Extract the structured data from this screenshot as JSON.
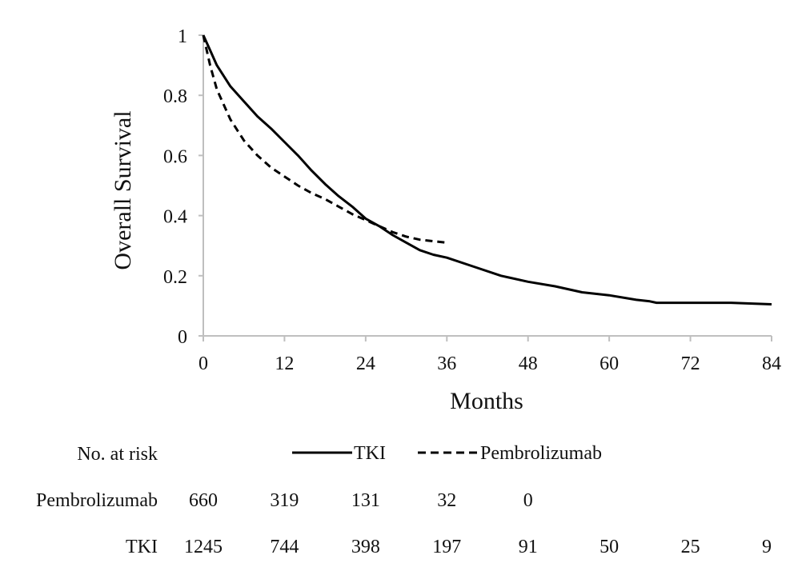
{
  "chart_data": {
    "type": "line",
    "ylabel": "Overall Survival",
    "xlabel": "Months",
    "xlim": [
      0,
      84
    ],
    "ylim": [
      0,
      1
    ],
    "xticks": [
      "0",
      "12",
      "24",
      "36",
      "48",
      "60",
      "72",
      "84"
    ],
    "yticks": [
      "0",
      "0.2",
      "0.4",
      "0.6",
      "0.8",
      "1"
    ],
    "legend": {
      "placement": "bottom-center",
      "entries": [
        "TKI",
        "Pembrolizumab"
      ]
    },
    "series": [
      {
        "name": "TKI",
        "style": "solid",
        "x": [
          0,
          1,
          2,
          4,
          6,
          8,
          10,
          12,
          14,
          16,
          18,
          20,
          22,
          24,
          26,
          28,
          30,
          32,
          34,
          36,
          40,
          44,
          48,
          52,
          56,
          60,
          64,
          66,
          67,
          68,
          72,
          78,
          84
        ],
        "y": [
          1.0,
          0.95,
          0.9,
          0.83,
          0.78,
          0.73,
          0.69,
          0.645,
          0.6,
          0.55,
          0.505,
          0.465,
          0.43,
          0.39,
          0.365,
          0.335,
          0.31,
          0.285,
          0.27,
          0.26,
          0.23,
          0.2,
          0.18,
          0.165,
          0.145,
          0.135,
          0.12,
          0.115,
          0.11,
          0.11,
          0.11,
          0.11,
          0.105
        ]
      },
      {
        "name": "Pembrolizumab",
        "style": "dashed",
        "x": [
          0,
          1,
          2,
          4,
          6,
          8,
          10,
          12,
          14,
          16,
          18,
          20,
          22,
          24,
          26,
          28,
          30,
          32,
          34,
          36
        ],
        "y": [
          1.0,
          0.9,
          0.82,
          0.72,
          0.65,
          0.6,
          0.56,
          0.53,
          0.5,
          0.475,
          0.455,
          0.43,
          0.405,
          0.385,
          0.365,
          0.345,
          0.33,
          0.32,
          0.315,
          0.31
        ]
      }
    ]
  },
  "risk_table": {
    "header": "No. at risk",
    "rows": [
      {
        "label": "Pembrolizumab",
        "values": [
          "660",
          "319",
          "131",
          "32",
          "0"
        ]
      },
      {
        "label": "TKI",
        "values": [
          "1245",
          "744",
          "398",
          "197",
          "91",
          "50",
          "25",
          "9"
        ]
      }
    ]
  },
  "colors": {
    "line": "#000000",
    "axis": "#bfbfbf",
    "text": "#111111"
  }
}
